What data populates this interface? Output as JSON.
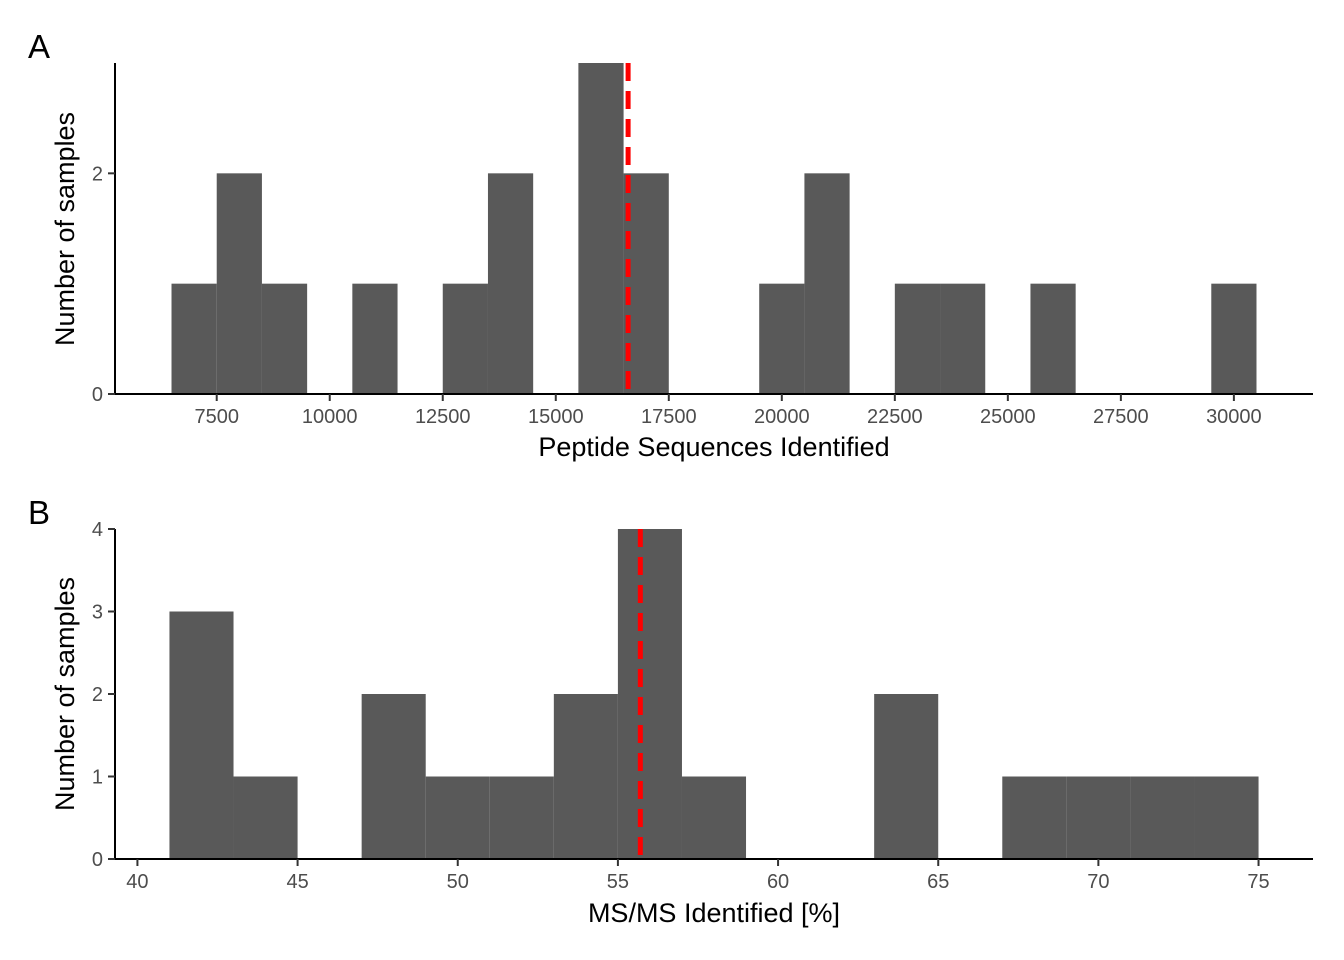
{
  "chart_data": [
    {
      "type": "bar",
      "subtype": "histogram",
      "panel_label": "A",
      "xlabel": "Peptide Sequences Identified",
      "ylabel": "Number of samples",
      "xlim": [
        5250,
        31750
      ],
      "ylim": [
        0,
        3
      ],
      "xticks": [
        7500,
        10000,
        12500,
        15000,
        17500,
        20000,
        22500,
        25000,
        27500,
        30000
      ],
      "xtick_labels": [
        "7500",
        "10000",
        "12500",
        "15000",
        "17500",
        "20000",
        "22500",
        "25000",
        "27500",
        "30000"
      ],
      "yticks": [
        0,
        2
      ],
      "ytick_labels": [
        "0",
        "2"
      ],
      "bin_width": 1000,
      "bins": [
        {
          "start": 6500,
          "end": 7500,
          "count": 1
        },
        {
          "start": 7500,
          "end": 8500,
          "count": 2
        },
        {
          "start": 8500,
          "end": 9500,
          "count": 1
        },
        {
          "start": 10500,
          "end": 11500,
          "count": 1
        },
        {
          "start": 12500,
          "end": 13500,
          "count": 1
        },
        {
          "start": 13500,
          "end": 14500,
          "count": 2
        },
        {
          "start": 15500,
          "end": 16500,
          "count": 3
        },
        {
          "start": 16500,
          "end": 17500,
          "count": 2
        },
        {
          "start": 19500,
          "end": 20500,
          "count": 1
        },
        {
          "start": 20500,
          "end": 21500,
          "count": 2
        },
        {
          "start": 22500,
          "end": 23500,
          "count": 1
        },
        {
          "start": 23500,
          "end": 24500,
          "count": 1
        },
        {
          "start": 25500,
          "end": 26500,
          "count": 1
        },
        {
          "start": 29500,
          "end": 30500,
          "count": 1
        }
      ],
      "bar_color": "#595959",
      "reference_line": {
        "x": 16600,
        "color": "#ff0000",
        "style": "dashed"
      }
    },
    {
      "type": "bar",
      "subtype": "histogram",
      "panel_label": "B",
      "xlabel": "MS/MS Identified [%]",
      "ylabel": "Number of samples",
      "xlim": [
        39.3,
        76.7
      ],
      "ylim": [
        0,
        4
      ],
      "xticks": [
        40,
        45,
        50,
        55,
        60,
        65,
        70,
        75
      ],
      "xtick_labels": [
        "40",
        "45",
        "50",
        "55",
        "60",
        "65",
        "70",
        "75"
      ],
      "yticks": [
        0,
        1,
        2,
        3,
        4
      ],
      "ytick_labels": [
        "0",
        "1",
        "2",
        "3",
        "4"
      ],
      "bin_width": 2,
      "bins": [
        {
          "start": 41,
          "end": 43,
          "count": 3
        },
        {
          "start": 43,
          "end": 45,
          "count": 1
        },
        {
          "start": 47,
          "end": 49,
          "count": 2
        },
        {
          "start": 49,
          "end": 51,
          "count": 1
        },
        {
          "start": 51,
          "end": 53,
          "count": 1
        },
        {
          "start": 53,
          "end": 55,
          "count": 2
        },
        {
          "start": 55,
          "end": 57,
          "count": 4
        },
        {
          "start": 57,
          "end": 59,
          "count": 1
        },
        {
          "start": 63,
          "end": 65,
          "count": 2
        },
        {
          "start": 67,
          "end": 69,
          "count": 1
        },
        {
          "start": 69,
          "end": 71,
          "count": 1
        },
        {
          "start": 71,
          "end": 73,
          "count": 1
        },
        {
          "start": 73,
          "end": 75,
          "count": 1
        }
      ],
      "bar_color": "#595959",
      "reference_line": {
        "x": 55.7,
        "color": "#ff0000",
        "style": "dashed"
      }
    }
  ]
}
